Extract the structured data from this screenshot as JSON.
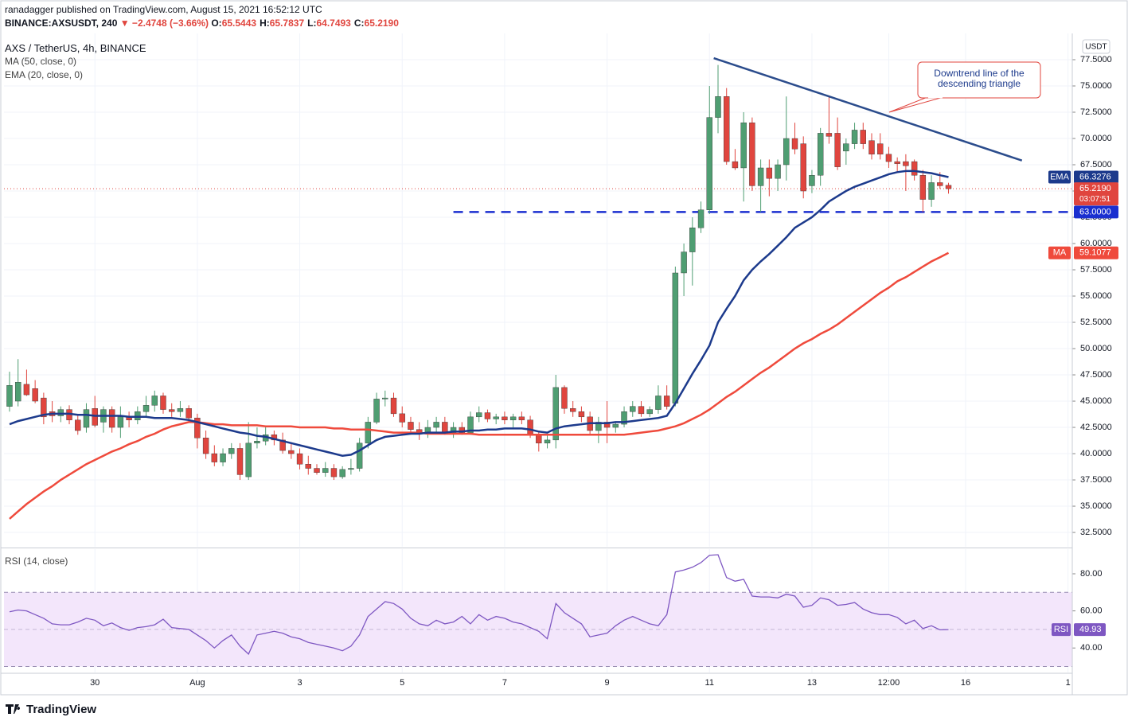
{
  "header": {
    "published": "ranadagger published on TradingView.com, August 15, 2021 16:52:12 UTC",
    "symbol": "BINANCE:AXSUSDT, 240",
    "change": "▼ −2.4748 (−3.66%)",
    "ohlc": [
      {
        "key": "O:",
        "value": "65.5443"
      },
      {
        "key": "H:",
        "value": "65.7837"
      },
      {
        "key": "L:",
        "value": "64.7493"
      },
      {
        "key": "C:",
        "value": "65.2190"
      }
    ]
  },
  "chart_data": [
    {
      "type": "candlestick",
      "title": "AXS / TetherUS, 4h, BINANCE",
      "currency": "USDT",
      "open": [
        44.5,
        45,
        46.6,
        46.2,
        45.3,
        44,
        43.6,
        44.2,
        43.2,
        42.5,
        44.3,
        43,
        44.2,
        42.5,
        43.5,
        43.2,
        44,
        44.6,
        45.5,
        44.2,
        44,
        44.3,
        43.4,
        41.5,
        40,
        39.2,
        40,
        40.5,
        37.8,
        41,
        41.2,
        41.8,
        41.3,
        40.3,
        40,
        39,
        38.6,
        38.2,
        38.6,
        37.8,
        38.5,
        38.6,
        41,
        43,
        45.2,
        45.3,
        43.8,
        43,
        42.3,
        42,
        42.5,
        43,
        42,
        42.5,
        42,
        43.5,
        43.9,
        43.3,
        43.5,
        43.2,
        43.5,
        43.2,
        41.8,
        41,
        41.3,
        46.3,
        44.3,
        44,
        43.5,
        42.2,
        43,
        42.5,
        42.8,
        44,
        44.5,
        43.8,
        44.2,
        45.5,
        44.8,
        57.2,
        59.2,
        61.5,
        63.2,
        72,
        74,
        67.8,
        67.2,
        71.5,
        65.5,
        67.2,
        66.2,
        67.5,
        70,
        69.5,
        65.5,
        66.5,
        70.5,
        70.5,
        68.8,
        69.5,
        70.8,
        69.8,
        69.5,
        68.5,
        67.8,
        67.8,
        67.8,
        66.5,
        64.2,
        65.8,
        65.5443
      ],
      "high": [
        47.8,
        49,
        48,
        47,
        45.8,
        45,
        44.5,
        44.6,
        43.6,
        44.8,
        45.5,
        44.5,
        44.5,
        44.5,
        44,
        44.5,
        45.5,
        46,
        45.8,
        44.8,
        45,
        44.6,
        43.8,
        42.2,
        40.8,
        40.5,
        41,
        41,
        43,
        42.5,
        42.5,
        42.2,
        42,
        41,
        40.5,
        39.8,
        39,
        39.2,
        39,
        38.8,
        39.5,
        41.5,
        43.5,
        45.8,
        46,
        45.8,
        44.5,
        43.5,
        43,
        43.2,
        43.5,
        43.5,
        43,
        43,
        44,
        44.5,
        44.2,
        43.8,
        44,
        43.8,
        44,
        43.6,
        42.2,
        41.8,
        47.5,
        46.5,
        45,
        44.5,
        44,
        43.5,
        45,
        43,
        44.5,
        45,
        45,
        44.5,
        46.5,
        46.5,
        57.8,
        60,
        62.5,
        64,
        75,
        77,
        74.8,
        69,
        72.5,
        72,
        68,
        68,
        68,
        74,
        71.5,
        70.2,
        67,
        71,
        74,
        72,
        70,
        71.5,
        71.5,
        70.5,
        70.5,
        69.2,
        68.2,
        68.5,
        68,
        67,
        66.5,
        66.8,
        65.7837
      ],
      "low": [
        44,
        44.5,
        45.5,
        44.8,
        42.8,
        43,
        43,
        42.8,
        41.8,
        42,
        42.5,
        42,
        42,
        41.5,
        42.5,
        42.8,
        43.5,
        44,
        43.8,
        43.5,
        43.5,
        43,
        40.5,
        39.5,
        38.8,
        38.8,
        39.5,
        37.5,
        37.5,
        40.5,
        40.8,
        40.8,
        40,
        39.5,
        38.5,
        38,
        38,
        37.8,
        37.5,
        37.6,
        38,
        38.3,
        40.5,
        42.8,
        44.5,
        43.5,
        42.5,
        41.8,
        41.3,
        41.5,
        42,
        41.8,
        41.5,
        41.8,
        41.8,
        43,
        43,
        42.8,
        42.8,
        42.5,
        42.8,
        41.5,
        40.2,
        40.5,
        40.5,
        43.8,
        43.5,
        43,
        41.8,
        41,
        41,
        42,
        42.5,
        43.5,
        43.5,
        43.5,
        43.8,
        44.2,
        44.5,
        55,
        56,
        61,
        62.8,
        70.5,
        67.5,
        67,
        64,
        65,
        63,
        64.5,
        65,
        66,
        68.5,
        64.3,
        64.8,
        65.5,
        69.5,
        67,
        67.5,
        69,
        69,
        68,
        68,
        67.2,
        66.8,
        65,
        66,
        63,
        63.5,
        65.2,
        64.7493
      ],
      "close": [
        46.5,
        46.8,
        45.6,
        45,
        43.5,
        43.6,
        44.2,
        43.2,
        42.2,
        44.2,
        42.7,
        44.2,
        42.5,
        43.5,
        43.2,
        44,
        44.6,
        45.5,
        44.2,
        44,
        44.3,
        43.4,
        41.5,
        40,
        39.2,
        40,
        40.5,
        38,
        41,
        41.2,
        41.8,
        41.3,
        40.3,
        40,
        39,
        38.6,
        38.2,
        38.6,
        37.8,
        38.5,
        38.6,
        41,
        43,
        45.2,
        45.3,
        43.8,
        43,
        42.3,
        42,
        42.5,
        43,
        42,
        42.5,
        42,
        43.5,
        43.9,
        43.3,
        43.5,
        43.2,
        43.5,
        43.2,
        41.8,
        41,
        41.3,
        46.3,
        44.3,
        44,
        43.5,
        42.2,
        43,
        42.5,
        42.8,
        44,
        44.5,
        43.8,
        44.2,
        45.5,
        44.5,
        57.2,
        59.2,
        61.5,
        63.2,
        72,
        74,
        67.8,
        67.2,
        71.5,
        65.5,
        67.2,
        66.2,
        67.5,
        70,
        69,
        65,
        66.5,
        70.5,
        70.2,
        67.3,
        69.5,
        70.8,
        69.5,
        68.5,
        68.5,
        67.8,
        67.6,
        67.4,
        66.5,
        64.2,
        65.8,
        65.5,
        65.219
      ],
      "up_color": "#4f9e72",
      "down_color": "#e0453e",
      "series": [
        {
          "name": "MA",
          "legend": "MA (50, close, 0)",
          "color": "#ef4a3c",
          "values": [
            33.8,
            34.5,
            35.2,
            35.8,
            36.4,
            36.9,
            37.5,
            38,
            38.5,
            39,
            39.4,
            39.8,
            40.2,
            40.5,
            40.9,
            41.2,
            41.6,
            41.9,
            42.3,
            42.6,
            42.8,
            43,
            43,
            42.9,
            42.8,
            42.8,
            42.7,
            42.7,
            42.7,
            42.7,
            42.6,
            42.6,
            42.6,
            42.6,
            42.5,
            42.5,
            42.5,
            42.5,
            42.4,
            42.4,
            42.3,
            42.3,
            42.3,
            42.2,
            42.1,
            42,
            42,
            42,
            42,
            41.9,
            41.9,
            41.9,
            41.9,
            41.9,
            41.9,
            41.8,
            41.8,
            41.8,
            41.8,
            41.8,
            41.8,
            41.8,
            41.8,
            41.8,
            41.8,
            41.8,
            41.8,
            41.8,
            41.8,
            41.8,
            41.8,
            41.8,
            41.8,
            41.9,
            42,
            42.1,
            42.2,
            42.4,
            42.6,
            42.9,
            43.3,
            43.7,
            44.2,
            44.8,
            45.4,
            45.9,
            46.5,
            47.1,
            47.7,
            48.2,
            48.8,
            49.4,
            50,
            50.5,
            50.9,
            51.4,
            51.8,
            52.3,
            52.9,
            53.5,
            54.1,
            54.7,
            55.3,
            55.8,
            56.4,
            56.8,
            57.3,
            57.8,
            58.3,
            58.7,
            59.1077
          ]
        },
        {
          "name": "EMA",
          "legend": "EMA (20, close, 0)",
          "color": "#1c3a8c",
          "values": [
            42.8,
            43.1,
            43.3,
            43.5,
            43.7,
            43.8,
            43.8,
            43.8,
            43.7,
            43.7,
            43.6,
            43.6,
            43.6,
            43.6,
            43.5,
            43.5,
            43.5,
            43.4,
            43.4,
            43.4,
            43.3,
            43.2,
            43,
            42.8,
            42.6,
            42.4,
            42.2,
            42,
            41.9,
            41.7,
            41.6,
            41.4,
            41.2,
            41,
            40.8,
            40.6,
            40.4,
            40.2,
            40,
            39.8,
            39.9,
            40.3,
            40.8,
            41.3,
            41.6,
            41.7,
            41.8,
            41.9,
            41.9,
            42,
            42,
            42,
            42.1,
            42.1,
            42.2,
            42.2,
            42.3,
            42.3,
            42.4,
            42.4,
            42.4,
            42.3,
            42.1,
            42,
            42.4,
            42.6,
            42.7,
            42.8,
            42.9,
            42.9,
            42.9,
            43,
            43,
            43.1,
            43.2,
            43.3,
            43.4,
            43.6,
            44.8,
            46.2,
            47.6,
            48.9,
            50.3,
            52.5,
            53.8,
            55,
            56.5,
            57.5,
            58.3,
            59,
            59.8,
            60.6,
            61.5,
            62,
            62.5,
            63.2,
            64,
            64.5,
            65,
            65.4,
            65.7,
            66,
            66.3,
            66.6,
            66.8,
            66.9,
            66.9,
            66.8,
            66.7,
            66.5,
            66.3276
          ]
        }
      ],
      "xlim": [
        -0.65,
        124.5
      ],
      "xticks": [
        {
          "value": 10,
          "label": "30"
        },
        {
          "value": 22,
          "label": "Aug"
        },
        {
          "value": 34,
          "label": "3"
        },
        {
          "value": 46,
          "label": "5"
        },
        {
          "value": 58,
          "label": "7"
        },
        {
          "value": 70,
          "label": "9"
        },
        {
          "value": 82,
          "label": "11"
        },
        {
          "value": 94,
          "label": "13"
        },
        {
          "value": 103,
          "label": "12:00"
        },
        {
          "value": 112,
          "label": "16"
        },
        {
          "value": 124,
          "label": "1"
        }
      ],
      "ylim": [
        31.14,
        80
      ],
      "yticks": [
        {
          "value": 32.5,
          "label": "32.5000"
        },
        {
          "value": 35,
          "label": "35.0000"
        },
        {
          "value": 37.5,
          "label": "37.5000"
        },
        {
          "value": 40,
          "label": "40.0000"
        },
        {
          "value": 42.5,
          "label": "42.5000"
        },
        {
          "value": 45,
          "label": "45.0000"
        },
        {
          "value": 47.5,
          "label": "47.5000"
        },
        {
          "value": 50,
          "label": "50.0000"
        },
        {
          "value": 52.5,
          "label": "52.5000"
        },
        {
          "value": 55,
          "label": "55.0000"
        },
        {
          "value": 57.5,
          "label": "57.5000"
        },
        {
          "value": 60,
          "label": "60.0000"
        },
        {
          "value": 62.5,
          "label": "62.5000"
        },
        {
          "value": 65,
          "label": "65.0000"
        },
        {
          "value": 67.5,
          "label": "67.5000"
        },
        {
          "value": 70,
          "label": "70.0000"
        },
        {
          "value": 72.5,
          "label": "72.5000"
        },
        {
          "value": 75,
          "label": "75.0000"
        },
        {
          "value": 77.5,
          "label": "77.5000"
        }
      ],
      "grid": true,
      "last_price": {
        "value": 65.219,
        "label": "65.2190"
      },
      "countdown": "03:07:51",
      "support": {
        "value": 63,
        "label": "63.0000",
        "x_start": 52,
        "color": "#1a2fd0"
      },
      "trendline": {
        "x": [
          82.5,
          118.6
        ],
        "y": [
          77.65,
          67.9
        ],
        "color": "#2b4c8c"
      },
      "annotation": [
        "Downtrend line of the",
        "descending triangle"
      ]
    },
    {
      "type": "line",
      "title": "RSI (14, close)",
      "series": [
        {
          "name": "RSI",
          "color": "#7e57c2",
          "values": [
            59.5,
            60.5,
            60,
            58,
            56,
            53,
            52.5,
            52.5,
            54,
            56,
            55,
            52,
            53.5,
            51,
            49.5,
            51,
            51.5,
            52.5,
            55.5,
            51,
            50.5,
            50,
            47,
            44,
            40,
            44,
            47,
            41,
            36.7,
            47,
            48,
            49,
            48,
            46,
            45,
            43,
            42,
            41,
            40,
            38.5,
            41,
            47,
            57,
            61,
            65,
            64,
            61,
            56,
            53,
            52,
            55,
            53,
            54,
            57,
            53,
            58,
            55,
            57,
            56,
            54,
            53,
            51,
            49,
            45,
            64,
            59,
            56,
            53,
            46,
            47,
            48,
            52,
            55,
            57,
            55,
            53,
            52,
            58,
            81,
            82,
            83.5,
            86,
            90,
            90.3,
            78,
            76,
            77,
            68,
            67.5,
            67.5,
            67,
            69,
            68,
            62,
            63,
            67,
            66,
            63,
            63.5,
            64.5,
            61,
            59,
            58,
            58,
            56.5,
            53,
            55,
            50.5,
            52,
            49.8,
            49.93
          ]
        }
      ],
      "ylim": [
        26.8,
        93.3
      ],
      "yticks": [
        {
          "value": 40,
          "label": "40.00"
        },
        {
          "value": 60,
          "label": "60.00"
        },
        {
          "value": 80,
          "label": "80.00"
        }
      ],
      "band": [
        30,
        70
      ],
      "midline": 50,
      "band_color": "#f3e6fb"
    }
  ],
  "footer": {
    "logo": "TradingView"
  }
}
